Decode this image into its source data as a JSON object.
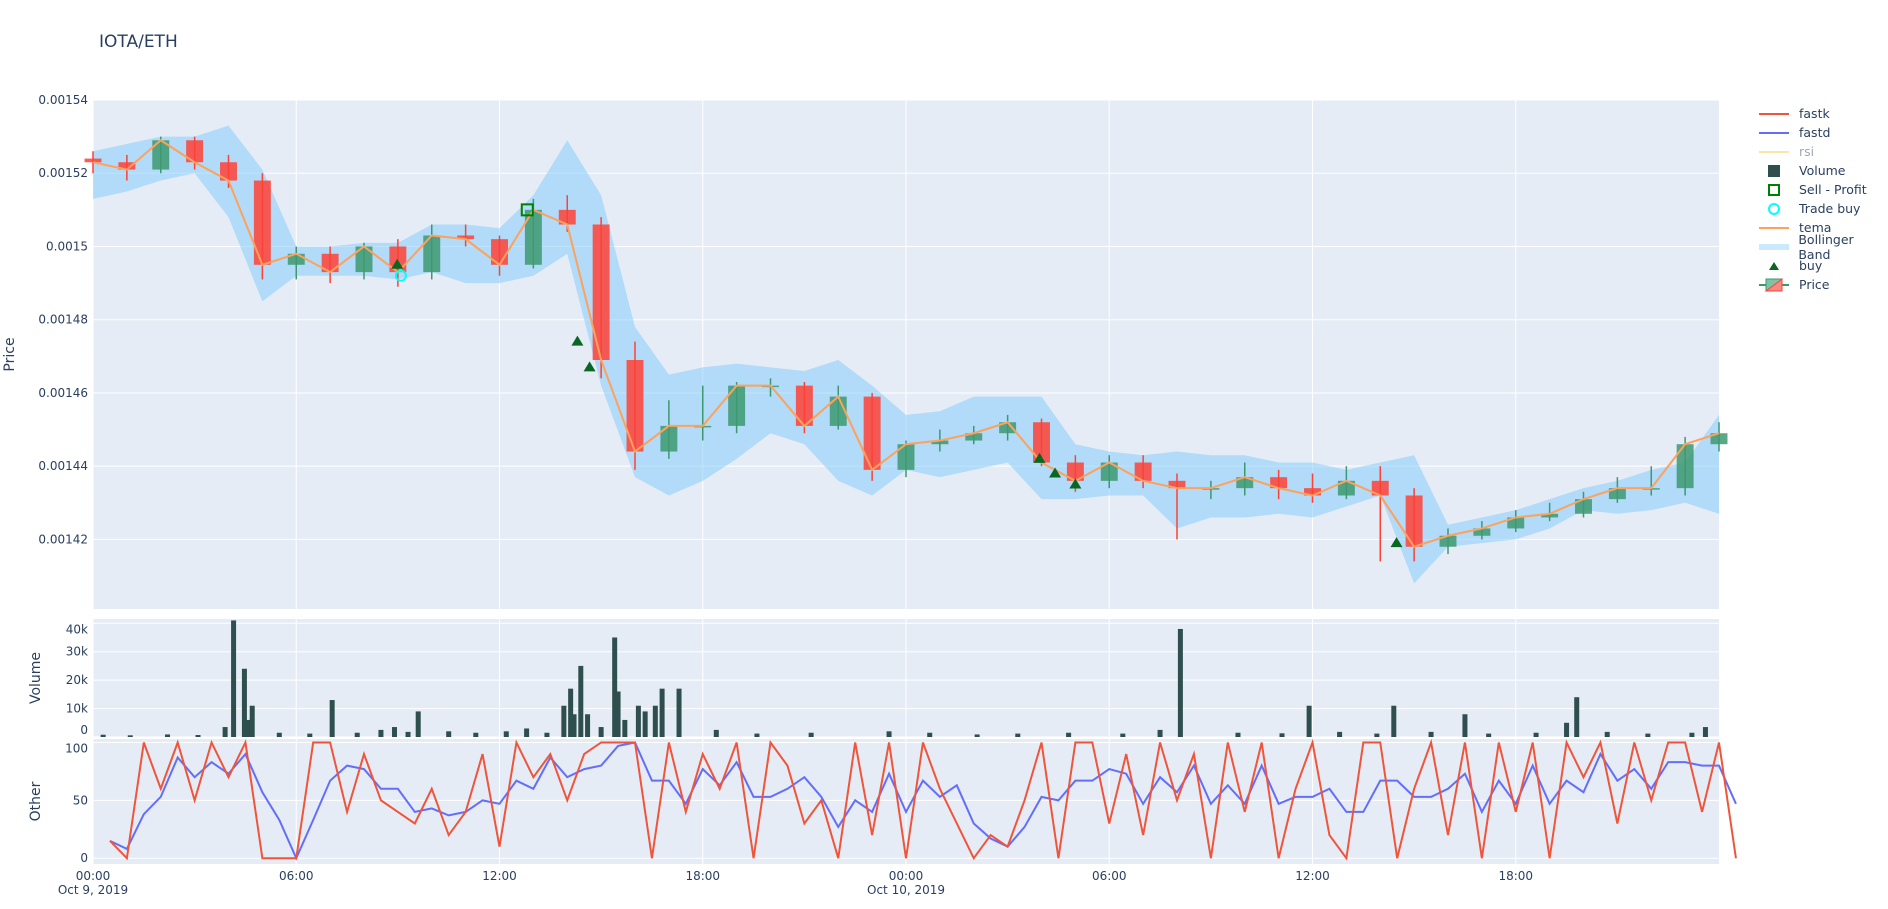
{
  "title": "IOTA/ETH",
  "colors": {
    "background": "#E5ECF6",
    "grid": "#ffffff",
    "text": "#2a3f5f",
    "increasing": "#3D9970",
    "decreasing": "#FF4136",
    "bollinger": "rgba(135,206,250,0.55)",
    "tema": "#FFA15A",
    "fastk": "#EF553B",
    "fastd": "#636EFA",
    "rsi": "#FECB52",
    "volume": "#2F4F4F",
    "buy": "#0B6623",
    "sell_profit": "#008000",
    "trade_buy": "#00FFFF"
  },
  "legend": [
    {
      "label": "fastk",
      "icon": "line",
      "color": "#EF553B"
    },
    {
      "label": "fastd",
      "icon": "line",
      "color": "#636EFA"
    },
    {
      "label": "rsi",
      "icon": "line",
      "color": "#FECB52",
      "hidden": true
    },
    {
      "label": "Volume",
      "icon": "square-filled",
      "color": "#2F4F4F"
    },
    {
      "label": "Sell - Profit",
      "icon": "square-open",
      "color": "#008000"
    },
    {
      "label": "Trade buy",
      "icon": "circle-open",
      "color": "#00FFFF"
    },
    {
      "label": "tema",
      "icon": "line",
      "color": "#FFA15A"
    },
    {
      "label": "Bollinger Band",
      "icon": "band",
      "color": "rgba(135,206,250,0.45)"
    },
    {
      "label": "buy",
      "icon": "triangle-up",
      "color": "#0B6623"
    },
    {
      "label": "Price",
      "icon": "candlestick",
      "color": "#3D9970"
    }
  ],
  "chart_data": [
    {
      "type": "candlestick",
      "ylabel": "Price",
      "ylim": [
        0.001401,
        0.00154
      ],
      "yticks": [
        "0.00142",
        "0.00144",
        "0.00146",
        "0.00148",
        "0.0015",
        "0.00152",
        "0.00154"
      ],
      "grid": true,
      "hours_from": "2019-10-09 00:00",
      "x_hours": [
        0,
        1,
        2,
        3,
        4,
        5,
        6,
        7,
        8,
        9,
        10,
        11,
        12,
        13,
        14,
        15,
        16,
        17,
        18,
        19,
        20,
        21,
        22,
        23,
        24,
        25,
        26,
        27,
        28,
        29,
        30,
        31,
        32,
        33,
        34,
        35,
        36,
        37,
        38,
        39,
        40,
        41,
        42,
        43,
        44,
        45,
        46,
        47,
        48
      ],
      "open": [
        0.001524,
        0.001523,
        0.001521,
        0.001529,
        0.001523,
        0.001518,
        0.001495,
        0.001498,
        0.001493,
        0.0015,
        0.001493,
        0.001503,
        0.001502,
        0.001495,
        0.00151,
        0.001506,
        0.001469,
        0.001444,
        0.001451,
        0.001451,
        0.001462,
        0.001462,
        0.001451,
        0.001459,
        0.001439,
        0.001446,
        0.001447,
        0.001449,
        0.001452,
        0.001441,
        0.001436,
        0.001441,
        0.001436,
        0.001434,
        0.001434,
        0.001437,
        0.001434,
        0.001432,
        0.001436,
        0.001432,
        0.001418,
        0.001421,
        0.001423,
        0.001426,
        0.001427,
        0.001431,
        0.001434,
        0.001434,
        0.001446
      ],
      "high": [
        0.001526,
        0.001525,
        0.00153,
        0.00153,
        0.001525,
        0.00152,
        0.0015,
        0.0015,
        0.001501,
        0.001502,
        0.001506,
        0.001506,
        0.001503,
        0.001513,
        0.001514,
        0.001508,
        0.001474,
        0.001458,
        0.001462,
        0.001463,
        0.001464,
        0.001463,
        0.001462,
        0.00146,
        0.001447,
        0.00145,
        0.001451,
        0.001454,
        0.001453,
        0.001443,
        0.001443,
        0.001443,
        0.001438,
        0.001436,
        0.001441,
        0.001439,
        0.001438,
        0.00144,
        0.00144,
        0.001434,
        0.001423,
        0.001425,
        0.001428,
        0.00143,
        0.001433,
        0.001437,
        0.00144,
        0.001448,
        0.001452
      ],
      "low": [
        0.00152,
        0.001518,
        0.00152,
        0.001521,
        0.001516,
        0.001491,
        0.001491,
        0.00149,
        0.001491,
        0.001489,
        0.001491,
        0.0015,
        0.001492,
        0.001494,
        0.001504,
        0.001464,
        0.001439,
        0.001442,
        0.001447,
        0.001449,
        0.001459,
        0.001449,
        0.00145,
        0.001436,
        0.001437,
        0.001444,
        0.001446,
        0.001447,
        0.00144,
        0.001433,
        0.001434,
        0.001434,
        0.00142,
        0.001431,
        0.001432,
        0.001431,
        0.00143,
        0.001431,
        0.001414,
        0.001414,
        0.001416,
        0.00142,
        0.001422,
        0.001425,
        0.001426,
        0.00143,
        0.001432,
        0.001432,
        0.001444
      ],
      "close": [
        0.001523,
        0.001521,
        0.001529,
        0.001523,
        0.001518,
        0.001495,
        0.001498,
        0.001493,
        0.0015,
        0.001493,
        0.001503,
        0.001502,
        0.001495,
        0.00151,
        0.001506,
        0.001469,
        0.001444,
        0.001451,
        0.001451,
        0.001462,
        0.001462,
        0.001451,
        0.001459,
        0.001439,
        0.001446,
        0.001447,
        0.001449,
        0.001452,
        0.001441,
        0.001436,
        0.001441,
        0.001436,
        0.001434,
        0.001434,
        0.001437,
        0.001434,
        0.001432,
        0.001436,
        0.001432,
        0.001418,
        0.001421,
        0.001423,
        0.001426,
        0.001427,
        0.001431,
        0.001434,
        0.001434,
        0.001446,
        0.001449
      ],
      "tema": [
        0.001523,
        0.001521,
        0.001529,
        0.001523,
        0.001518,
        0.001495,
        0.001498,
        0.001493,
        0.0015,
        0.001493,
        0.001503,
        0.001502,
        0.001495,
        0.00151,
        0.001506,
        0.001469,
        0.001444,
        0.001451,
        0.001451,
        0.001462,
        0.001462,
        0.001451,
        0.001459,
        0.001439,
        0.001446,
        0.001447,
        0.001449,
        0.001452,
        0.001441,
        0.001436,
        0.001441,
        0.001436,
        0.001434,
        0.001434,
        0.001437,
        0.001434,
        0.001432,
        0.001436,
        0.001432,
        0.001418,
        0.001421,
        0.001423,
        0.001426,
        0.001427,
        0.001431,
        0.001434,
        0.001434,
        0.001446,
        0.001449
      ],
      "bb_upper": [
        0.001526,
        0.001528,
        0.00153,
        0.00153,
        0.001533,
        0.001521,
        0.0015,
        0.0015,
        0.001501,
        0.001501,
        0.001506,
        0.001506,
        0.001505,
        0.001514,
        0.001529,
        0.001514,
        0.001478,
        0.001465,
        0.001467,
        0.001468,
        0.001467,
        0.001466,
        0.001469,
        0.001462,
        0.001454,
        0.001455,
        0.001459,
        0.001459,
        0.001459,
        0.001446,
        0.001444,
        0.001443,
        0.001444,
        0.001443,
        0.001443,
        0.001441,
        0.001441,
        0.001439,
        0.001441,
        0.001443,
        0.001424,
        0.001426,
        0.001428,
        0.001431,
        0.001434,
        0.001436,
        0.001439,
        0.001441,
        0.001454
      ],
      "bb_lower": [
        0.001513,
        0.001515,
        0.001518,
        0.00152,
        0.001508,
        0.001485,
        0.001492,
        0.001492,
        0.001492,
        0.001491,
        0.001493,
        0.00149,
        0.00149,
        0.001492,
        0.001498,
        0.001462,
        0.001437,
        0.001432,
        0.001436,
        0.001442,
        0.001449,
        0.001446,
        0.001436,
        0.001432,
        0.001439,
        0.001437,
        0.001439,
        0.001441,
        0.001431,
        0.001431,
        0.001432,
        0.001432,
        0.001423,
        0.001426,
        0.001426,
        0.001427,
        0.001426,
        0.001429,
        0.001432,
        0.001408,
        0.001418,
        0.001419,
        0.00142,
        0.001423,
        0.001428,
        0.001427,
        0.001428,
        0.00143,
        0.001427
      ],
      "buy_markers": [
        [
          8.98,
          0.001495
        ],
        [
          14.3,
          0.001474
        ],
        [
          14.66,
          0.001467
        ],
        [
          27.94,
          0.001442
        ],
        [
          28.4,
          0.001438
        ],
        [
          29.0,
          0.001435
        ],
        [
          38.48,
          0.001419
        ]
      ],
      "trade_buy": [
        [
          9.09,
          0.001492
        ]
      ],
      "sell_profit": [
        [
          12.82,
          0.00151
        ]
      ]
    },
    {
      "type": "bar",
      "ylabel": "Volume",
      "ylim": [
        0,
        41500
      ],
      "yticks": [
        "0",
        "10k",
        "20k",
        "30k",
        "40k"
      ],
      "ytick_values": [
        0,
        10000,
        20000,
        30000,
        40000
      ],
      "x_hours": [
        0.3,
        1.1,
        2.2,
        3.1,
        3.9,
        4.15,
        4.47,
        4.6,
        4.7,
        5.5,
        6.4,
        7.06,
        7.8,
        8.5,
        8.9,
        9.3,
        9.6,
        10.5,
        11.3,
        12.2,
        12.8,
        13.4,
        13.9,
        14.1,
        14.2,
        14.4,
        14.6,
        15.0,
        15.4,
        15.5,
        15.7,
        16.1,
        16.3,
        16.6,
        16.8,
        17.3,
        18.4,
        19.6,
        21.2,
        23.5,
        24.7,
        26.1,
        27.3,
        28.8,
        30.4,
        31.5,
        32.1,
        33.8,
        35.1,
        35.9,
        36.8,
        37.9,
        38.4,
        39.5,
        40.5,
        41.2,
        42.6,
        43.5,
        43.8,
        44.7,
        45.9,
        47.2,
        47.6
      ],
      "values": [
        800,
        600,
        900,
        700,
        3500,
        41000,
        24000,
        6000,
        11000,
        1500,
        1200,
        13000,
        1500,
        2500,
        3500,
        1800,
        9000,
        2000,
        1500,
        2000,
        3000,
        1500,
        11000,
        17000,
        8000,
        25000,
        8000,
        3500,
        35000,
        16000,
        6000,
        11000,
        9000,
        11000,
        17000,
        17000,
        2500,
        1200,
        1500,
        2000,
        1500,
        900,
        1200,
        1500,
        1200,
        2500,
        38000,
        1500,
        1300,
        11000,
        1800,
        1200,
        11000,
        1800,
        8000,
        1200,
        1500,
        5000,
        14000,
        1800,
        1200,
        1500,
        3500
      ]
    },
    {
      "type": "line",
      "ylabel": "Other",
      "ylim": [
        -5,
        103
      ],
      "yticks": [
        "0",
        "50",
        "100"
      ],
      "ytick_values": [
        0,
        50,
        100
      ],
      "x_step_hours": 0.5,
      "x_start_hours": 0.5,
      "series": [
        {
          "name": "fastk",
          "values": [
            15,
            0,
            100,
            60,
            100,
            50,
            100,
            70,
            100,
            0,
            0,
            0,
            100,
            100,
            40,
            90,
            50,
            40,
            30,
            60,
            20,
            40,
            90,
            10,
            100,
            70,
            90,
            50,
            90,
            100,
            100,
            100,
            0,
            100,
            40,
            90,
            60,
            100,
            0,
            100,
            80,
            30,
            50,
            0,
            100,
            20,
            100,
            0,
            100,
            60,
            30,
            0,
            20,
            10,
            50,
            100,
            0,
            100,
            100,
            30,
            90,
            20,
            100,
            50,
            90,
            0,
            100,
            40,
            100,
            0,
            60,
            100,
            20,
            0,
            100,
            100,
            0,
            60,
            100,
            20,
            100,
            0,
            100,
            40,
            100,
            0,
            100,
            70,
            100,
            30,
            100,
            50,
            100,
            100,
            40,
            100,
            0
          ]
        },
        {
          "name": "fastd",
          "values": [
            15,
            8,
            38,
            53,
            87,
            70,
            83,
            73,
            90,
            57,
            33,
            0,
            33,
            67,
            80,
            77,
            60,
            60,
            40,
            43,
            37,
            40,
            50,
            47,
            67,
            60,
            87,
            70,
            77,
            80,
            97,
            100,
            67,
            67,
            47,
            77,
            63,
            83,
            53,
            53,
            60,
            70,
            53,
            27,
            50,
            40,
            73,
            40,
            67,
            53,
            63,
            30,
            17,
            10,
            27,
            53,
            50,
            67,
            67,
            77,
            73,
            47,
            70,
            57,
            80,
            47,
            63,
            47,
            80,
            47,
            53,
            53,
            60,
            40,
            40,
            67,
            67,
            53,
            53,
            60,
            73,
            40,
            67,
            47,
            80,
            47,
            67,
            57,
            90,
            67,
            77,
            60,
            83,
            83,
            80,
            80,
            47
          ]
        }
      ]
    }
  ],
  "xaxis": {
    "range_hours": [
      0,
      48
    ],
    "ticks": [
      {
        "hour": 0,
        "label": "00:00",
        "sub": "Oct 9, 2019"
      },
      {
        "hour": 6,
        "label": "06:00"
      },
      {
        "hour": 12,
        "label": "12:00"
      },
      {
        "hour": 18,
        "label": "18:00"
      },
      {
        "hour": 24,
        "label": "00:00",
        "sub": "Oct 10, 2019"
      },
      {
        "hour": 30,
        "label": "06:00"
      },
      {
        "hour": 36,
        "label": "12:00"
      },
      {
        "hour": 42,
        "label": "18:00"
      }
    ]
  }
}
